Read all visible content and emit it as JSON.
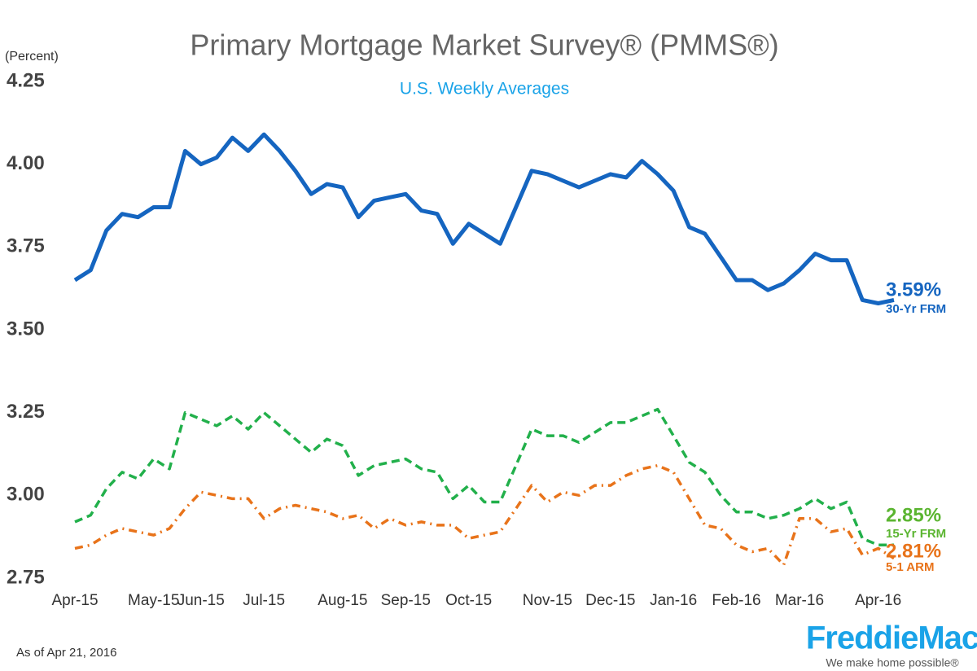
{
  "chart_data": {
    "type": "line",
    "title": "Primary Mortgage Market Survey® (PMMS®)",
    "subtitle": "U.S. Weekly Averages",
    "y_axis_label": "(Percent)",
    "footnote": "As of Apr 21, 2016",
    "logo": {
      "name": "FreddieMac",
      "tagline": "We make home possible®"
    },
    "categories": [
      "Apr-15",
      null,
      null,
      null,
      null,
      "May-15",
      null,
      null,
      "Jun-15",
      null,
      null,
      null,
      "Jul-15",
      null,
      null,
      null,
      null,
      "Aug-15",
      null,
      null,
      null,
      "Sep-15",
      null,
      null,
      null,
      "Oct-15",
      null,
      null,
      null,
      null,
      "Nov-15",
      null,
      null,
      null,
      "Dec-15",
      null,
      null,
      null,
      "Jan-16",
      null,
      null,
      null,
      "Feb-16",
      null,
      null,
      null,
      "Mar-16",
      null,
      null,
      null,
      null,
      "Apr-16",
      null
    ],
    "ylim": [
      2.75,
      4.25
    ],
    "yticks": [
      {
        "value": 2.75,
        "label": "2.75"
      },
      {
        "value": 3,
        "label": "3.00"
      },
      {
        "value": 3.25,
        "label": "3.25"
      },
      {
        "value": 3.5,
        "label": "3.50"
      },
      {
        "value": 3.75,
        "label": "3.75"
      },
      {
        "value": 4,
        "label": "4.00"
      },
      {
        "value": 4.25,
        "label": "4.25"
      }
    ],
    "grid": false,
    "series": [
      {
        "name": "30-Yr FRM",
        "color": "#1565c0",
        "style": "solid",
        "end_label": "3.59%",
        "values": [
          3.65,
          3.68,
          3.8,
          3.85,
          3.84,
          3.87,
          3.87,
          4.04,
          4.0,
          4.02,
          4.08,
          4.04,
          4.09,
          4.04,
          3.98,
          3.91,
          3.94,
          3.93,
          3.84,
          3.89,
          3.9,
          3.91,
          3.86,
          3.85,
          3.76,
          3.82,
          3.79,
          3.76,
          3.87,
          3.98,
          3.97,
          3.95,
          3.93,
          3.95,
          3.97,
          3.96,
          4.01,
          3.97,
          3.92,
          3.81,
          3.79,
          3.72,
          3.65,
          3.65,
          3.62,
          3.64,
          3.68,
          3.73,
          3.71,
          3.71,
          3.59,
          3.58,
          3.59
        ]
      },
      {
        "name": "15-Yr FRM",
        "color": "#22b04b",
        "label_color": "#5bb531",
        "style": "dashed",
        "end_label": "2.85%",
        "values": [
          2.92,
          2.94,
          3.02,
          3.07,
          3.05,
          3.11,
          3.08,
          3.25,
          3.23,
          3.21,
          3.24,
          3.2,
          3.25,
          3.21,
          3.17,
          3.13,
          3.17,
          3.15,
          3.06,
          3.09,
          3.1,
          3.11,
          3.08,
          3.07,
          2.99,
          3.03,
          2.98,
          2.98,
          3.09,
          3.2,
          3.18,
          3.18,
          3.16,
          3.19,
          3.22,
          3.22,
          3.24,
          3.26,
          3.18,
          3.1,
          3.07,
          3.0,
          2.95,
          2.95,
          2.93,
          2.94,
          2.96,
          2.99,
          2.96,
          2.98,
          2.87,
          2.85,
          2.85
        ]
      },
      {
        "name": "5-1 ARM",
        "color": "#e8731a",
        "style": "dashdot",
        "end_label": "2.81%",
        "values": [
          2.84,
          2.85,
          2.88,
          2.9,
          2.89,
          2.88,
          2.9,
          2.96,
          3.01,
          3.0,
          2.99,
          2.99,
          2.93,
          2.96,
          2.97,
          2.96,
          2.95,
          2.93,
          2.94,
          2.9,
          2.93,
          2.91,
          2.92,
          2.91,
          2.91,
          2.87,
          2.88,
          2.89,
          2.96,
          3.03,
          2.98,
          3.01,
          3.0,
          3.03,
          3.03,
          3.06,
          3.08,
          3.09,
          3.07,
          2.99,
          2.91,
          2.9,
          2.85,
          2.83,
          2.84,
          2.79,
          2.93,
          2.93,
          2.89,
          2.9,
          2.82,
          2.84,
          2.81
        ]
      }
    ]
  }
}
